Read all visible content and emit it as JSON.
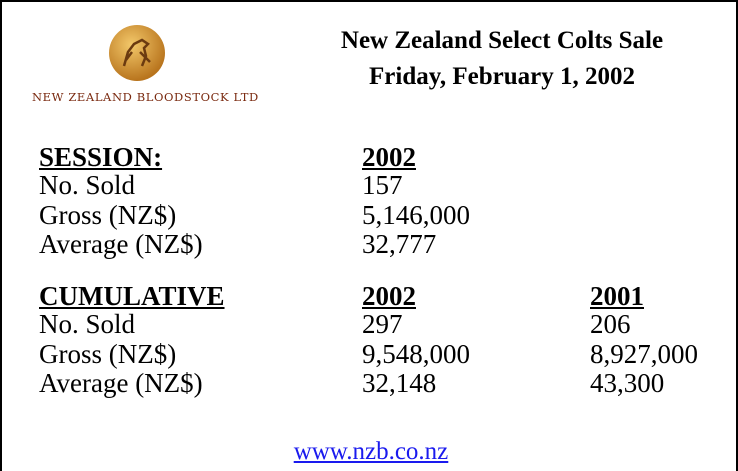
{
  "logo": {
    "text": "NEW ZEALAND BLOODSTOCK LTD"
  },
  "header": {
    "title": "New Zealand Select Colts Sale",
    "date": "Friday, February 1, 2002"
  },
  "session": {
    "heading": "SESSION:",
    "columns": [
      "2002"
    ],
    "rows": [
      [
        "No. Sold",
        "157"
      ],
      [
        "Gross (NZ$)",
        "5,146,000"
      ],
      [
        "Average (NZ$)",
        "32,777"
      ]
    ]
  },
  "cumulative": {
    "heading": "CUMULATIVE",
    "columns": [
      "2002",
      "2001"
    ],
    "rows": [
      [
        "No. Sold",
        "297",
        "206"
      ],
      [
        "Gross (NZ$)",
        "9,548,000",
        "8,927,000"
      ],
      [
        "Average (NZ$)",
        "32,148",
        "43,300"
      ]
    ]
  },
  "footer": {
    "url": "www.nzb.co.nz"
  }
}
